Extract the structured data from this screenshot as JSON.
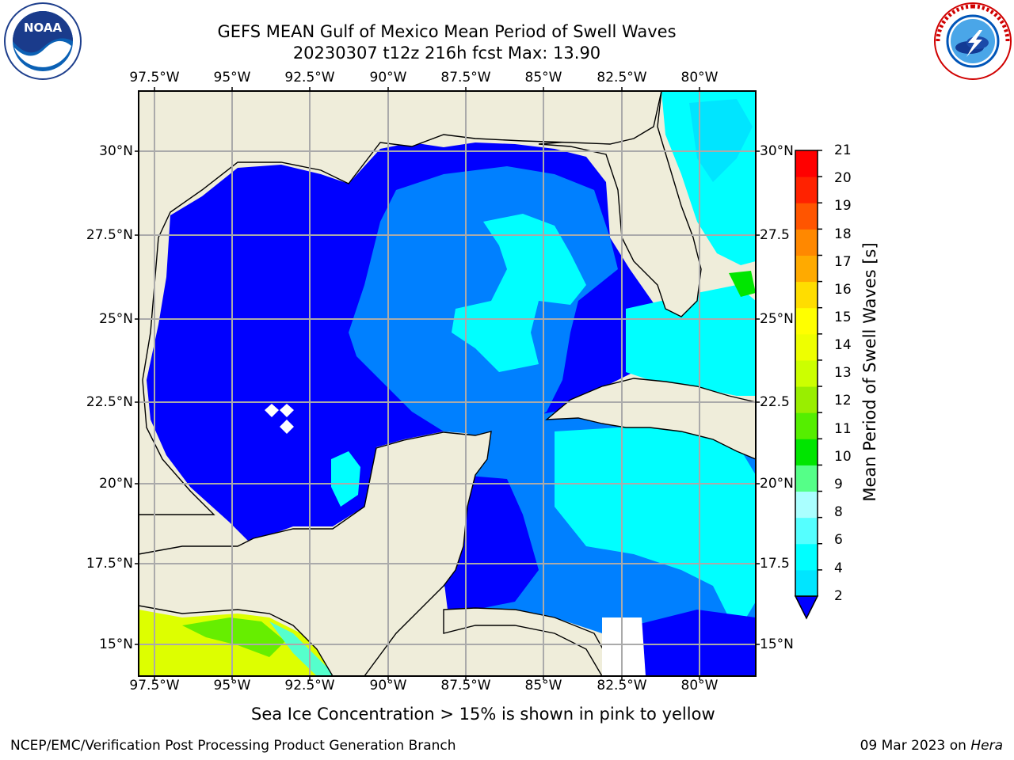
{
  "header": {
    "title_line1": "GEFS MEAN Gulf of Mexico Mean Period of Swell Waves",
    "title_line2": "20230307 t12z 216h fcst   Max: 13.90"
  },
  "logos": {
    "left_icon": "noaa-logo-icon",
    "right_icon": "nws-logo-icon"
  },
  "map": {
    "lon_labels": [
      "97.5°W",
      "95°W",
      "92.5°W",
      "90°W",
      "87.5°W",
      "85°W",
      "82.5°W",
      "80°W"
    ],
    "lat_labels_left": [
      "30°N",
      "27.5°N",
      "25°N",
      "22.5°N",
      "20°N",
      "17.5°N",
      "15°N"
    ],
    "lat_labels_right": [
      "30°N",
      "27.5",
      "25°N",
      "22.5",
      "20°N",
      "17.5",
      "15°N"
    ],
    "colors": {
      "land": "#efedda",
      "sea_deep": "#0000ff",
      "sea_mid": "#0080ff",
      "sea_light": "#00ffff",
      "grid": "#aaaaaa"
    }
  },
  "colorbar": {
    "label": "Mean Period of Swell Waves [s]",
    "ticks": [
      "21",
      "20",
      "19",
      "18",
      "17",
      "16",
      "15",
      "14",
      "13",
      "12",
      "11",
      "10",
      "9",
      "8",
      "6",
      "4",
      "2"
    ],
    "colors_bottom_to_top": [
      "#0080ff",
      "#00e5ff",
      "#00ffff",
      "#55ffff",
      "#aaffff",
      "#55ff88",
      "#00e500",
      "#55ee00",
      "#99ee00",
      "#ccff00",
      "#eeff00",
      "#ffff00",
      "#ffdd00",
      "#ffaa00",
      "#ff8800",
      "#ff5500",
      "#ff2200",
      "#ff0000"
    ]
  },
  "footer": {
    "note": "Sea Ice Concentration > 15% is shown in pink to yellow",
    "left": "NCEP/EMC/Verification Post Processing Product Generation Branch",
    "right_date": "09 Mar 2023 on",
    "right_host": "Hera"
  }
}
